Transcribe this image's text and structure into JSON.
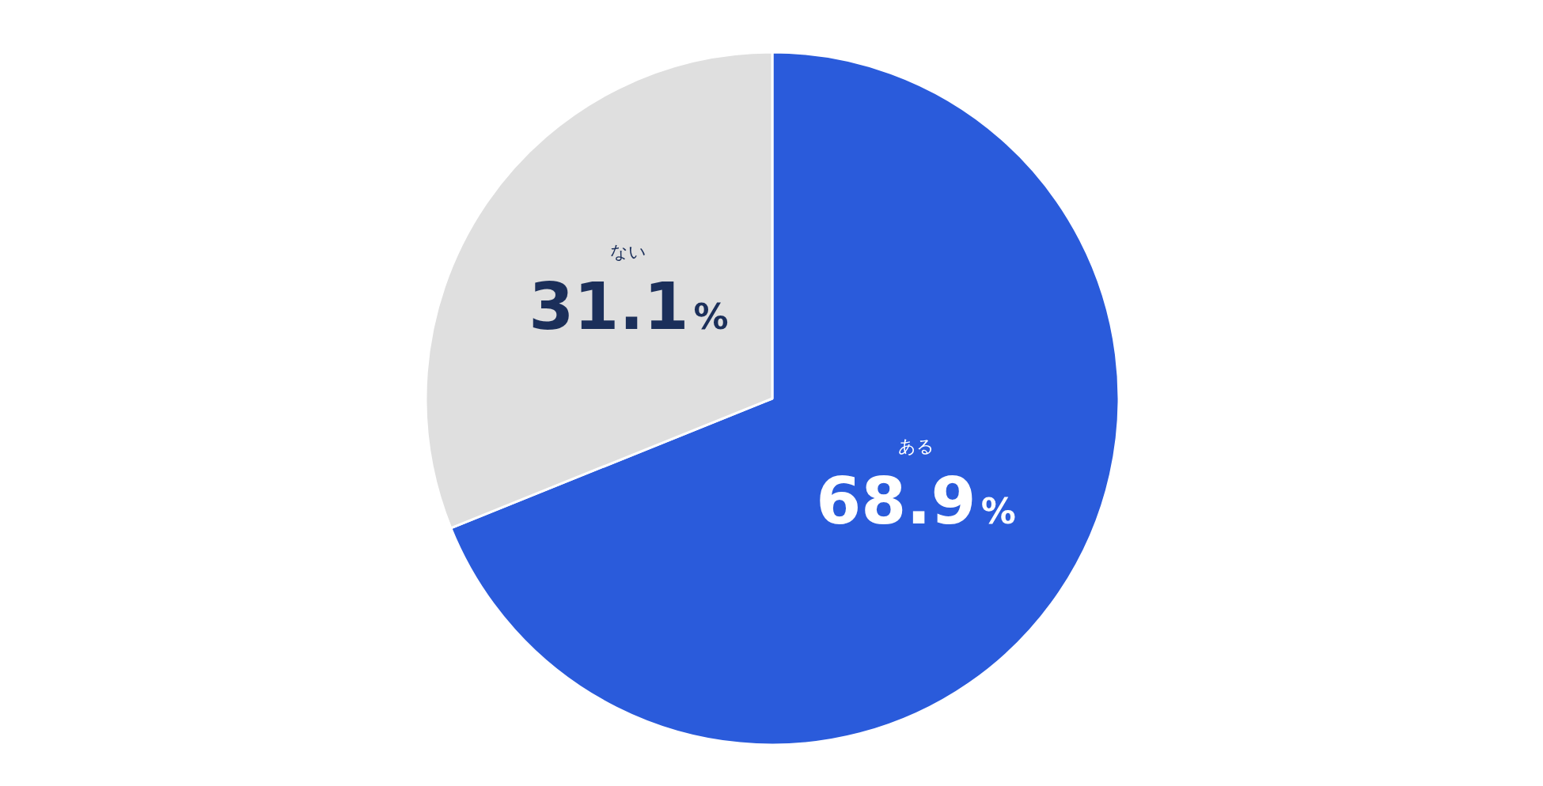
{
  "chart_data": {
    "type": "pie",
    "categories": [
      "ある",
      "ない"
    ],
    "values": [
      68.9,
      31.1
    ],
    "colors": [
      "#2a5bdb",
      "#dfdfdf"
    ],
    "value_labels": [
      "68.9%",
      "31.1%"
    ]
  }
}
